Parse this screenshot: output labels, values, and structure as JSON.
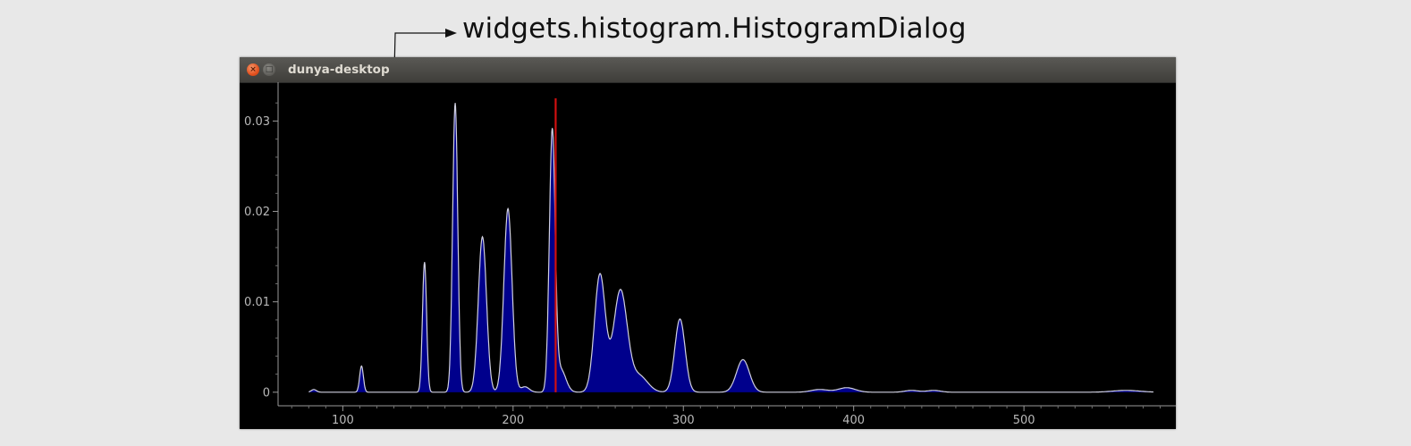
{
  "annotation": {
    "text": "widgets.histogram.HistogramDialog"
  },
  "window": {
    "title": "dunya-desktop",
    "close_glyph": "×",
    "maximize_glyph": "□"
  },
  "chart_data": {
    "type": "area",
    "title": "",
    "xlabel": "",
    "ylabel": "",
    "xlim": [
      62,
      585
    ],
    "ylim": [
      -0.0015,
      0.0335
    ],
    "x_ticks": [
      100,
      200,
      300,
      400,
      500
    ],
    "y_ticks": [
      0,
      0.01,
      0.02,
      0.03
    ],
    "x_tick_labels": [
      "100",
      "200",
      "300",
      "400",
      "500"
    ],
    "y_tick_labels": [
      "0",
      "0.01",
      "0.02",
      "0.03"
    ],
    "fill_color": "#00008c",
    "line_color": "#d0d0e0",
    "marker_color": "#d01010",
    "marker_x": 225,
    "x_range": [
      80,
      576
    ],
    "peaks": [
      {
        "x": 83,
        "height": 0.0003,
        "width": 1.5
      },
      {
        "x": 111,
        "height": 0.0029,
        "width": 1.1
      },
      {
        "x": 148,
        "height": 0.0144,
        "width": 1.2
      },
      {
        "x": 166,
        "height": 0.032,
        "width": 1.5
      },
      {
        "x": 182,
        "height": 0.0172,
        "width": 2.4
      },
      {
        "x": 197,
        "height": 0.0203,
        "width": 2.4
      },
      {
        "x": 207,
        "height": 0.0006,
        "width": 2.5
      },
      {
        "x": 223,
        "height": 0.0286,
        "width": 1.7
      },
      {
        "x": 228,
        "height": 0.0025,
        "width": 3
      },
      {
        "x": 251,
        "height": 0.013,
        "width": 3.2
      },
      {
        "x": 263,
        "height": 0.0112,
        "width": 4.0
      },
      {
        "x": 274,
        "height": 0.0018,
        "width": 5
      },
      {
        "x": 298,
        "height": 0.0081,
        "width": 3.0
      },
      {
        "x": 335,
        "height": 0.0036,
        "width": 3.8
      },
      {
        "x": 380,
        "height": 0.0003,
        "width": 5
      },
      {
        "x": 396,
        "height": 0.0005,
        "width": 5
      },
      {
        "x": 434,
        "height": 0.0002,
        "width": 4
      },
      {
        "x": 447,
        "height": 0.0002,
        "width": 4
      },
      {
        "x": 560,
        "height": 0.0002,
        "width": 8
      }
    ]
  }
}
